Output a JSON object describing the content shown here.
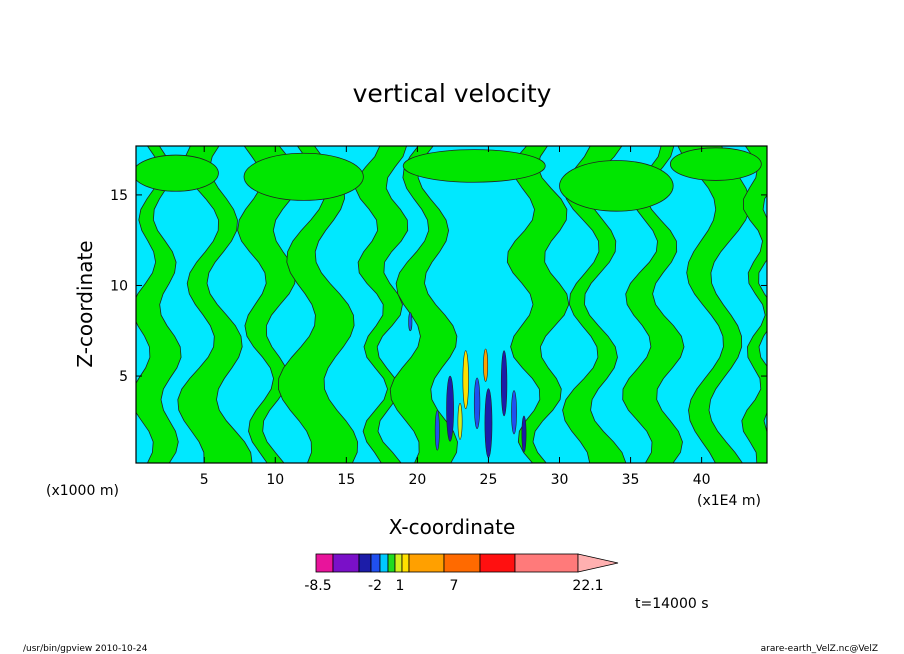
{
  "chart_data": {
    "type": "contour",
    "title": "vertical velocity",
    "xlabel": "X-coordinate",
    "ylabel": "Z-coordinate",
    "x_unit_note": "(x1E4 m)",
    "y_unit_note": "(x1000 m)",
    "xlim": [
      0.2,
      44.6
    ],
    "ylim": [
      0.2,
      17.7
    ],
    "x_ticks": [
      5,
      10,
      15,
      20,
      25,
      30,
      35,
      40
    ],
    "y_ticks": [
      5,
      10,
      15
    ],
    "colorbar": {
      "labels": [
        "-8.5",
        "-2",
        "1",
        "7",
        "22.1"
      ],
      "colors": [
        "#e8149b",
        "#7a10c8",
        "#1c1ca8",
        "#2050f0",
        "#00c8ff",
        "#20dc20",
        "#d4f020",
        "#ffe000",
        "#ffa000",
        "#ff6a00",
        "#ff1010",
        "#ff7a7a",
        "#ffb0b0"
      ]
    },
    "background_color": "#00e8ff",
    "contour_color_positive": "#00e600",
    "time_label": "t=14000 s"
  },
  "footer": {
    "left": "/usr/bin/gpview   2010-10-24",
    "right": "arare-earth_VelZ.nc@VelZ"
  }
}
